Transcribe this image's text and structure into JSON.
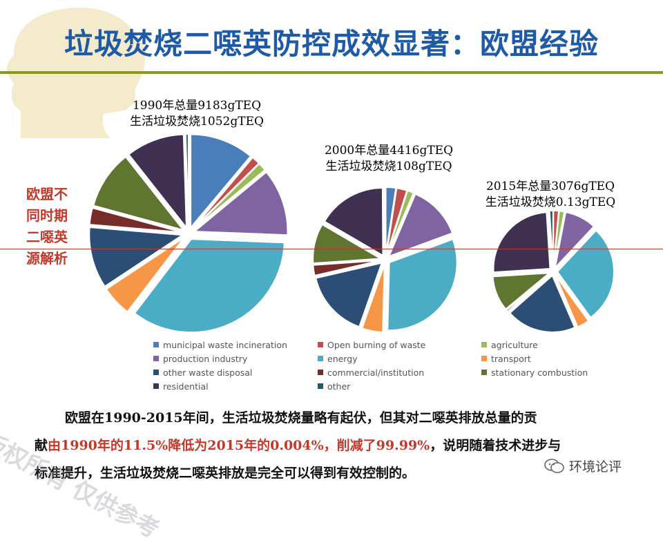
{
  "title": "垃圾焚烧二噁英防控成效显著：欧盟经验",
  "side_label": [
    "欧盟不",
    "同时期",
    "二噁英",
    "源解析"
  ],
  "captions": [
    {
      "line1": "1990年总量9183gTEQ",
      "line2": "生活垃圾焚烧1052gTEQ"
    },
    {
      "line1": "2000年总量4416gTEQ",
      "line2": "生活垃圾焚烧108gTEQ"
    },
    {
      "line1": "2015年总量3076gTEQ",
      "line2": "生活垃圾焚烧0.13gTEQ"
    }
  ],
  "colors": {
    "municipal waste incineration": "#4a7ebb",
    "Open burning of waste": "#c0504d",
    "agriculture": "#9bbb59",
    "production industry": "#8064a2",
    "energy": "#4bacc6",
    "transport": "#f79646",
    "other waste disposal": "#2c4d75",
    "commercial/institution": "#772c2a",
    "stationary combustion": "#5f7530",
    "residential": "#403152",
    "other": "#215968",
    "title": "#1f5aa6",
    "accent_red": "#c0392b"
  },
  "chart_data": [
    {
      "type": "pie",
      "year": "1990",
      "caption": "1990年总量9183gTEQ 生活垃圾焚烧1052gTEQ",
      "categories": [
        "municipal waste incineration",
        "Open burning of waste",
        "agriculture",
        "production industry",
        "energy",
        "transport",
        "other waste disposal",
        "commercial/institution",
        "stationary combustion",
        "residential",
        "other"
      ],
      "values": [
        11.5,
        1.5,
        1.5,
        12.0,
        36.0,
        5.5,
        11.0,
        3.0,
        10.5,
        10.5,
        0.5
      ]
    },
    {
      "type": "pie",
      "year": "2000",
      "caption": "2000年总量4416gTEQ 生活垃圾焚烧108gTEQ",
      "categories": [
        "municipal waste incineration",
        "Open burning of waste",
        "agriculture",
        "production industry",
        "energy",
        "transport",
        "other waste disposal",
        "commercial/institution",
        "stationary combustion",
        "residential",
        "other"
      ],
      "values": [
        2.4,
        2.5,
        1.5,
        13.0,
        31.0,
        5.0,
        16.0,
        2.5,
        9.5,
        16.5,
        0.1
      ]
    },
    {
      "type": "pie",
      "year": "2015",
      "caption": "2015年总量3076gTEQ 生活垃圾焚烧0.13gTEQ",
      "categories": [
        "municipal waste incineration",
        "Open burning of waste",
        "agriculture",
        "production industry",
        "energy",
        "transport",
        "other waste disposal",
        "commercial/institution",
        "stationary combustion",
        "residential",
        "other"
      ],
      "values": [
        0.004,
        1.5,
        1.5,
        9.0,
        28.0,
        3.5,
        20.0,
        0.5,
        10.0,
        25.0,
        1.0
      ]
    }
  ],
  "legend": [
    "municipal waste incineration",
    "Open burning of waste",
    "agriculture",
    "production industry",
    "energy",
    "transport",
    "other waste disposal",
    "commercial/institution",
    "stationary combustion",
    "residential",
    "other"
  ],
  "body": {
    "p1": "欧盟在1990-2015年间，生活垃圾焚烧量略有起伏，但其对二噁英排放总量的贡",
    "p2a": "献",
    "p2_hl": "由1990年的11.5%降低为2015年的0.004%，削减了99.99%",
    "p2b": "，说明随着技术进步与",
    "p3": "标准提升，生活垃圾焚烧二噁英排放是完全可以得到有效控制的。"
  },
  "watermark": "版权所有 仅供参考",
  "wechat_label": "环境论评"
}
